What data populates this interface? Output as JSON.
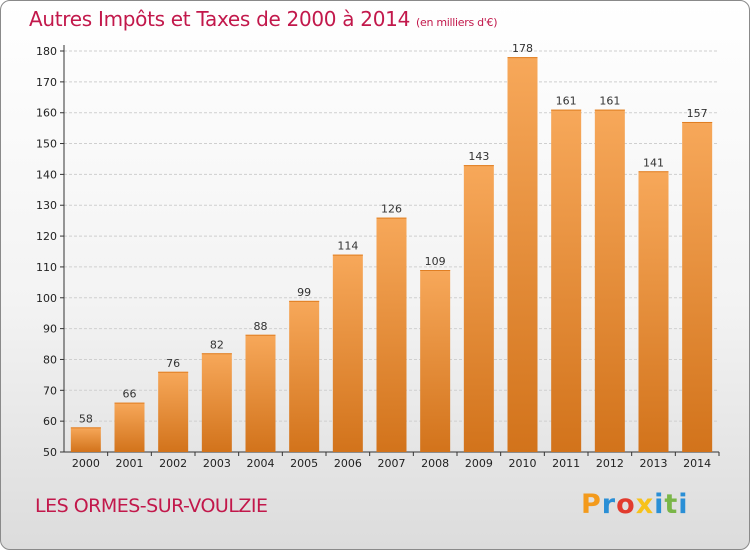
{
  "header": {
    "title": "Autres Impôts et Taxes de 2000 à 2014",
    "subtitle": "(en milliers d'€)"
  },
  "footer": {
    "commune": "LES ORMES-SUR-VOULZIE",
    "logo_letters": [
      "P",
      "r",
      "o",
      "x",
      "i",
      "t",
      "i"
    ],
    "logo_colors": [
      "#f39a1c",
      "#2a8fd6",
      "#e23b2e",
      "#f7c21b",
      "#2a8fd6",
      "#7ab648",
      "#2a8fd6"
    ]
  },
  "colors": {
    "bar_light": "#f7a85a",
    "bar_dark": "#d2731b",
    "accent_text": "#c2184b",
    "grid": "#cfcfcf"
  },
  "chart_data": {
    "type": "bar",
    "title": "Autres Impôts et Taxes de 2000 à 2014",
    "subtitle": "(en milliers d'€)",
    "xlabel": "",
    "ylabel": "",
    "categories": [
      "2000",
      "2001",
      "2002",
      "2003",
      "2004",
      "2005",
      "2006",
      "2007",
      "2008",
      "2009",
      "2010",
      "2011",
      "2012",
      "2013",
      "2014"
    ],
    "values": [
      58,
      66,
      76,
      82,
      88,
      99,
      114,
      126,
      109,
      143,
      178,
      161,
      161,
      141,
      157
    ],
    "ylim": [
      50,
      180
    ],
    "yticks": [
      50,
      60,
      70,
      80,
      90,
      100,
      110,
      120,
      130,
      140,
      150,
      160,
      170,
      180
    ],
    "grid": true,
    "legend": "none",
    "data_labels": true
  }
}
